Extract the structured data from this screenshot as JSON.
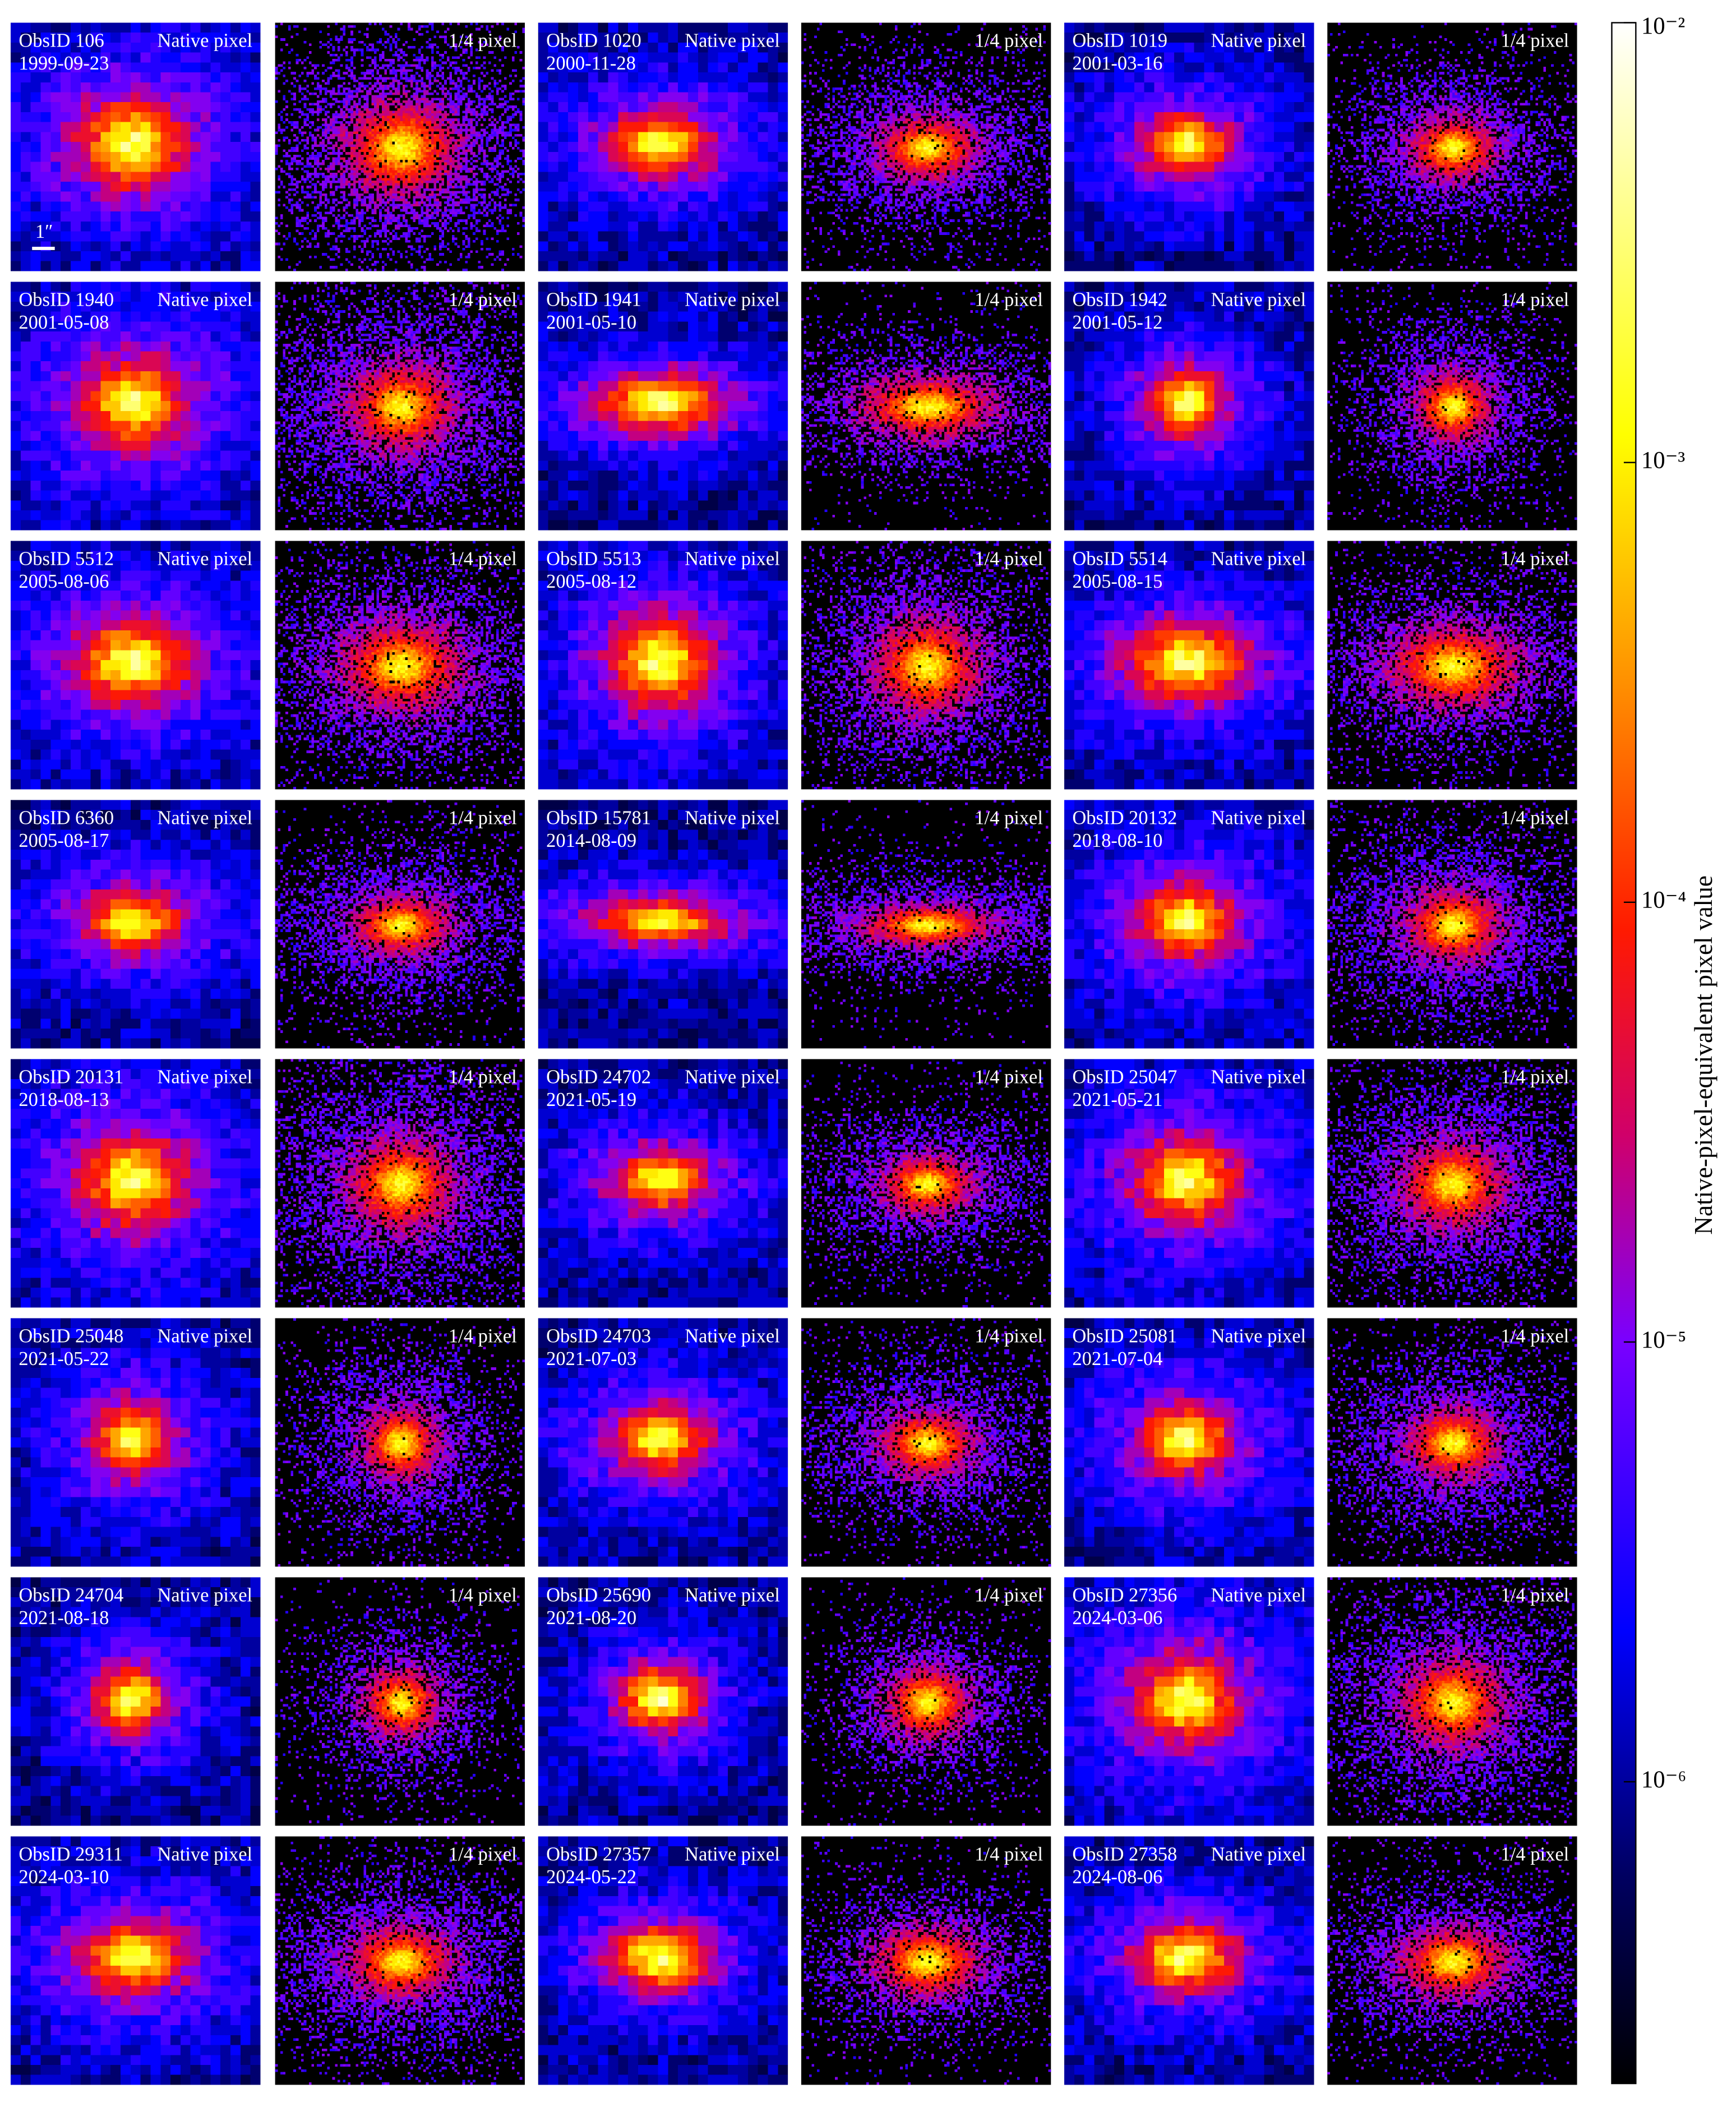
{
  "panels": [
    {
      "obsid": "ObsID 106",
      "date": "1999-09-23",
      "native_label": "Native pixel",
      "subpixel_label": "1/4 pixel"
    },
    {
      "obsid": "ObsID 1020",
      "date": "2000-11-28",
      "native_label": "Native pixel",
      "subpixel_label": "1/4 pixel"
    },
    {
      "obsid": "ObsID 1019",
      "date": "2001-03-16",
      "native_label": "Native pixel",
      "subpixel_label": "1/4 pixel"
    },
    {
      "obsid": "ObsID 1940",
      "date": "2001-05-08",
      "native_label": "Native pixel",
      "subpixel_label": "1/4 pixel"
    },
    {
      "obsid": "ObsID 1941",
      "date": "2001-05-10",
      "native_label": "Native pixel",
      "subpixel_label": "1/4 pixel"
    },
    {
      "obsid": "ObsID 1942",
      "date": "2001-05-12",
      "native_label": "Native pixel",
      "subpixel_label": "1/4 pixel"
    },
    {
      "obsid": "ObsID 5512",
      "date": "2005-08-06",
      "native_label": "Native pixel",
      "subpixel_label": "1/4 pixel"
    },
    {
      "obsid": "ObsID 5513",
      "date": "2005-08-12",
      "native_label": "Native pixel",
      "subpixel_label": "1/4 pixel"
    },
    {
      "obsid": "ObsID 5514",
      "date": "2005-08-15",
      "native_label": "Native pixel",
      "subpixel_label": "1/4 pixel"
    },
    {
      "obsid": "ObsID 6360",
      "date": "2005-08-17",
      "native_label": "Native pixel",
      "subpixel_label": "1/4 pixel"
    },
    {
      "obsid": "ObsID 15781",
      "date": "2014-08-09",
      "native_label": "Native pixel",
      "subpixel_label": "1/4 pixel"
    },
    {
      "obsid": "ObsID 20132",
      "date": "2018-08-10",
      "native_label": "Native pixel",
      "subpixel_label": "1/4 pixel"
    },
    {
      "obsid": "ObsID 20131",
      "date": "2018-08-13",
      "native_label": "Native pixel",
      "subpixel_label": "1/4 pixel"
    },
    {
      "obsid": "ObsID 24702",
      "date": "2021-05-19",
      "native_label": "Native pixel",
      "subpixel_label": "1/4 pixel"
    },
    {
      "obsid": "ObsID 25047",
      "date": "2021-05-21",
      "native_label": "Native pixel",
      "subpixel_label": "1/4 pixel"
    },
    {
      "obsid": "ObsID 25048",
      "date": "2021-05-22",
      "native_label": "Native pixel",
      "subpixel_label": "1/4 pixel"
    },
    {
      "obsid": "ObsID 24703",
      "date": "2021-07-03",
      "native_label": "Native pixel",
      "subpixel_label": "1/4 pixel"
    },
    {
      "obsid": "ObsID 25081",
      "date": "2021-07-04",
      "native_label": "Native pixel",
      "subpixel_label": "1/4 pixel"
    },
    {
      "obsid": "ObsID 24704",
      "date": "2021-08-18",
      "native_label": "Native pixel",
      "subpixel_label": "1/4 pixel"
    },
    {
      "obsid": "ObsID 25690",
      "date": "2021-08-20",
      "native_label": "Native pixel",
      "subpixel_label": "1/4 pixel"
    },
    {
      "obsid": "ObsID 27356",
      "date": "2024-03-06",
      "native_label": "Native pixel",
      "subpixel_label": "1/4 pixel"
    },
    {
      "obsid": "ObsID 29311",
      "date": "2024-03-10",
      "native_label": "Native pixel",
      "subpixel_label": "1/4 pixel"
    },
    {
      "obsid": "ObsID 27357",
      "date": "2024-05-22",
      "native_label": "Native pixel",
      "subpixel_label": "1/4 pixel"
    },
    {
      "obsid": "ObsID 27358",
      "date": "2024-08-06",
      "native_label": "Native pixel",
      "subpixel_label": "1/4 pixel"
    }
  ],
  "scale_bar": "1″",
  "colorbar": {
    "label": "Native-pixel-equivalent pixel value",
    "scale": "log",
    "lim": [
      2.06e-07,
      0.01
    ],
    "ticks": [
      {
        "value": 0.01,
        "label": "10⁻²"
      },
      {
        "value": 0.001,
        "label": "10⁻³"
      },
      {
        "value": 0.0001,
        "label": "10⁻⁴"
      },
      {
        "value": 1e-05,
        "label": "10⁻⁵"
      },
      {
        "value": 1e-06,
        "label": "10⁻⁶"
      }
    ]
  }
}
